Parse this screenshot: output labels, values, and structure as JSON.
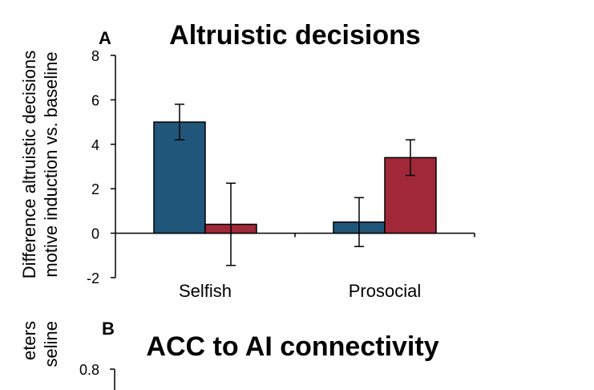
{
  "chart_data": [
    {
      "type": "bar",
      "panel_label": "A",
      "title": "Altruistic decisions",
      "ylabel_lines": [
        "Difference altruistic decisions",
        "motive induction vs. baseline"
      ],
      "xlabel": "",
      "categories": [
        "Selfish",
        "Prosocial"
      ],
      "ylim": [
        -2,
        8
      ],
      "yticks": [
        "-2",
        "0",
        "2",
        "4",
        "6",
        "8"
      ],
      "grid": false,
      "legend": "none",
      "series": [
        {
          "name": "series-blue",
          "color": "#1f5679",
          "values": [
            5.0,
            0.5
          ],
          "errors": [
            0.8,
            1.1
          ]
        },
        {
          "name": "series-red",
          "color": "#a02838",
          "values": [
            0.4,
            3.4
          ],
          "errors": [
            1.85,
            0.8
          ]
        }
      ]
    },
    {
      "type": "bar",
      "panel_label": "B",
      "title": "ACC to AI connectivity",
      "ylabel_lines": [
        "eters",
        "seline"
      ],
      "yticks": [
        "0.8"
      ]
    }
  ]
}
